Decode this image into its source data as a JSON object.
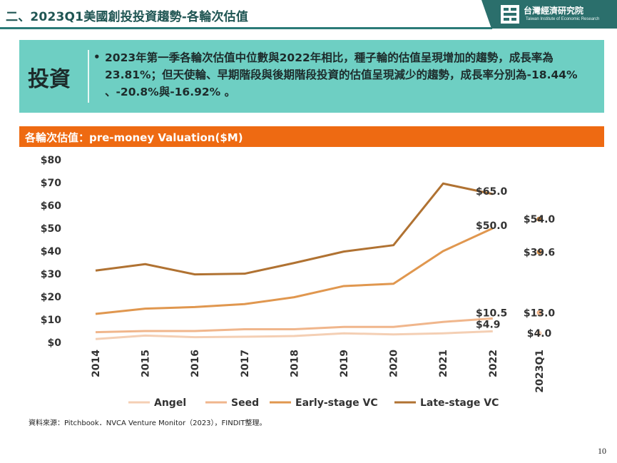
{
  "header": {
    "title": "二、2023Q1美國創投投資趨勢-各輪次估值",
    "logo_cn": "台灣經濟研究院",
    "logo_en": "Taiwan Institute of Economic Research"
  },
  "summary": {
    "tag": "投資",
    "bullet": "•",
    "text": "2023年第一季各輪次估值中位數與2022年相比，種子輪的估值呈現增加的趨勢，成長率為23.81%；但天使輪、早期階段與後期階段投資的估值呈現減少的趨勢，成長率分別為-18.44% 、-20.8%與-16.92% 。"
  },
  "chart_header": "各輪次估值：pre-money Valuation($M)",
  "colors": {
    "teal_dark": "#2b6f6c",
    "summary_bg": "#6ecfc3",
    "orange_header": "#ee6a12",
    "angel": "#f4cfb4",
    "seed": "#f0b68c",
    "early": "#e0974f",
    "late": "#b07232"
  },
  "chart_data": {
    "type": "line",
    "title": "",
    "xlabel": "",
    "ylabel": "",
    "ylim": [
      0,
      80
    ],
    "y_ticks": [
      "$0",
      "$10",
      "$20",
      "$30",
      "$40",
      "$50",
      "$60",
      "$70",
      "$80"
    ],
    "categories": [
      "2014",
      "2015",
      "2016",
      "2017",
      "2018",
      "2019",
      "2020",
      "2021",
      "2022"
    ],
    "side_category": "2023Q1",
    "legend_position": "bottom",
    "series": [
      {
        "name": "Angel",
        "values": [
          1.5,
          3.0,
          2.3,
          2.5,
          2.8,
          4.0,
          3.5,
          4.0,
          4.9
        ],
        "label_2022": "$4.9",
        "q1_value": 4.0,
        "q1_label": "$4.0"
      },
      {
        "name": "Seed",
        "values": [
          4.5,
          5.0,
          5.0,
          5.8,
          5.8,
          6.8,
          6.8,
          9.0,
          10.5
        ],
        "label_2022": "$10.5",
        "q1_value": 13.0,
        "q1_label": "$13.0"
      },
      {
        "name": "Early-stage VC",
        "values": [
          12.5,
          14.8,
          15.5,
          16.8,
          19.8,
          24.7,
          25.7,
          40.0,
          50.0
        ],
        "label_2022": "$50.0",
        "q1_value": 39.6,
        "q1_label": "$39.6"
      },
      {
        "name": "Late-stage VC",
        "values": [
          31.5,
          34.3,
          29.8,
          30.1,
          34.8,
          39.8,
          42.6,
          69.6,
          65.0
        ],
        "label_2022": "$65.0",
        "q1_value": 54.0,
        "q1_label": "$54.0"
      }
    ]
  },
  "source": "資料來源：Pitchbook．NVCA Venture Monitor（2023），FINDIT整理。",
  "page_number": "10"
}
